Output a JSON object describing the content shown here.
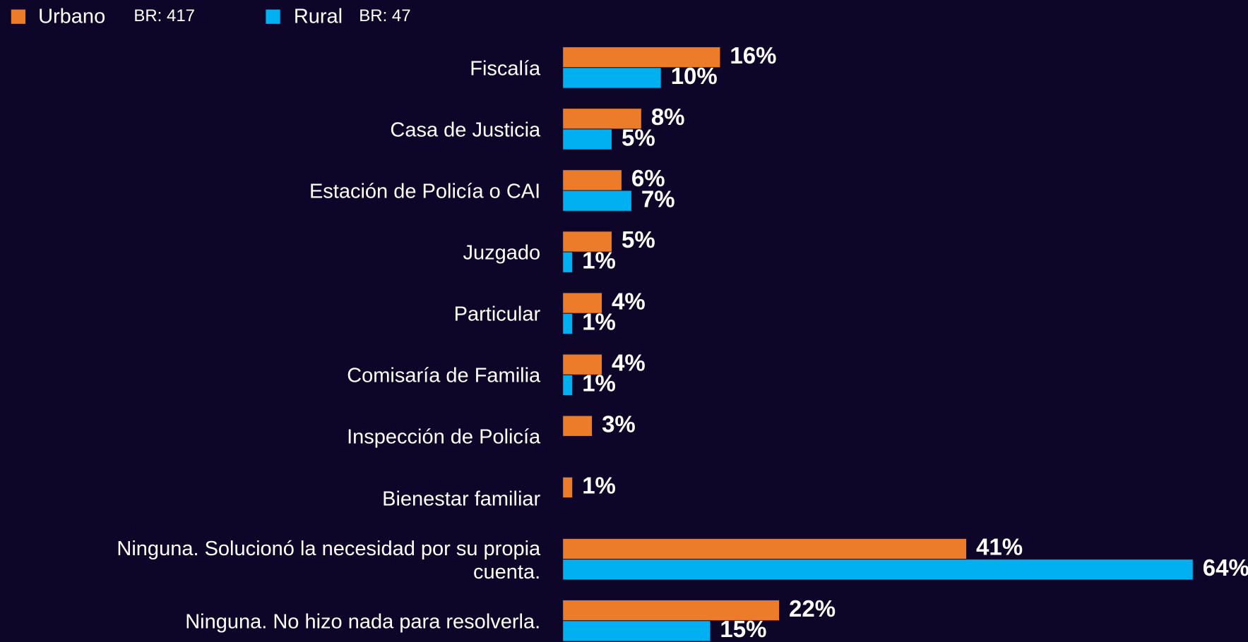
{
  "chart_data": {
    "type": "bar",
    "orientation": "horizontal",
    "categories": [
      "Fiscalía",
      "Casa de Justicia",
      "Estación de Policía o CAI",
      "Juzgado",
      "Particular",
      "Comisaría de Familia",
      "Inspección de Policía",
      "Bienestar familiar",
      "Ninguna. Solucionó la necesidad por su propia cuenta.",
      "Ninguna. No hizo nada para resolverla."
    ],
    "series": [
      {
        "name": "Urbano",
        "base": "BR: 417",
        "color": "#ec7c2a",
        "values": [
          16,
          8,
          6,
          5,
          4,
          4,
          3,
          1,
          41,
          22
        ],
        "value_labels": [
          "16%",
          "8%",
          "6%",
          "5%",
          "4%",
          "4%",
          "3%",
          "1%",
          "41%",
          "22%"
        ]
      },
      {
        "name": "Rural",
        "base": "BR: 47",
        "color": "#00b0f0",
        "values": [
          10,
          5,
          7,
          1,
          1,
          1,
          null,
          null,
          64,
          15
        ],
        "value_labels": [
          "10%",
          "5%",
          "7%",
          "1%",
          "1%",
          "1%",
          null,
          null,
          "64%",
          "15%"
        ]
      }
    ],
    "legend": "top-left"
  }
}
